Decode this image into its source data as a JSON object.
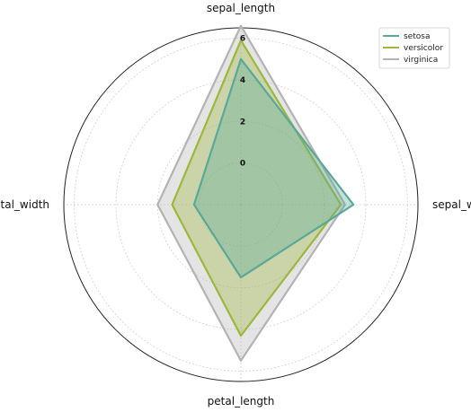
{
  "chart_data": {
    "type": "radar",
    "axes": [
      "sepal_length",
      "sepal_width",
      "petal_length",
      "petal_width"
    ],
    "ticks": [
      0,
      2,
      4,
      6
    ],
    "rlim": [
      -2,
      6.5
    ],
    "grid": true,
    "legend_position": "top-right",
    "series": [
      {
        "name": "setosa",
        "color": "#5aa89a",
        "values": [
          5.0,
          3.4,
          1.5,
          0.25
        ]
      },
      {
        "name": "versicolor",
        "color": "#9ab83a",
        "values": [
          5.9,
          2.8,
          4.3,
          1.3
        ]
      },
      {
        "name": "virginica",
        "color": "#b3b3b3",
        "values": [
          6.6,
          3.0,
          5.5,
          2.0
        ]
      }
    ]
  }
}
